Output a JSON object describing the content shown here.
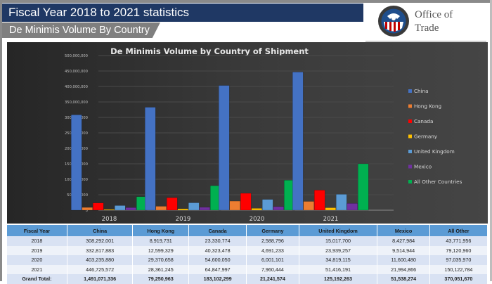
{
  "header": {
    "title": "Fiscal Year 2018 to 2021 statistics",
    "subtitle": "De Minimis Volume By Country",
    "logo_text_line1": "Office of",
    "logo_text_line2": "Trade"
  },
  "chart_data": {
    "type": "bar",
    "title": "De Minimis Volume by Country of Shipment",
    "xlabel": "",
    "ylabel": "",
    "categories": [
      "2018",
      "2019",
      "2020",
      "2021"
    ],
    "ylim": [
      0,
      500000000
    ],
    "yticks": [
      0,
      50000000,
      100000000,
      150000000,
      200000000,
      250000000,
      300000000,
      350000000,
      400000000,
      450000000,
      500000000
    ],
    "ytick_labels": [
      "0",
      "50,000,000",
      "100,000,000",
      "150,000,000",
      "200,000,000",
      "250,000,000",
      "300,000,000",
      "350,000,000",
      "400,000,000",
      "450,000,000",
      "500,000,000"
    ],
    "grid": true,
    "legend_position": "right",
    "series": [
      {
        "name": "China",
        "color": "#4472c4",
        "values": [
          308292001,
          332817883,
          403235880,
          446725572
        ]
      },
      {
        "name": "Hong Kong",
        "color": "#ed7d31",
        "values": [
          8919731,
          12599329,
          29370658,
          28361245
        ]
      },
      {
        "name": "Canada",
        "color": "#ff0000",
        "values": [
          23330774,
          40323478,
          54600050,
          64847997
        ]
      },
      {
        "name": "Germany",
        "color": "#ffc000",
        "values": [
          2588796,
          4691233,
          6001101,
          7960444
        ]
      },
      {
        "name": "United Kingdom",
        "color": "#5b9bd5",
        "values": [
          15017700,
          23939257,
          34819115,
          51416191
        ]
      },
      {
        "name": "Mexico",
        "color": "#7030a0",
        "values": [
          8427984,
          9514944,
          11600480,
          21994866
        ]
      },
      {
        "name": "All Other Countries",
        "color": "#00b050",
        "values": [
          43771956,
          79120960,
          97035970,
          150122784
        ]
      }
    ]
  },
  "table": {
    "headers": [
      "Fiscal Year",
      "China",
      "Hong Kong",
      "Canada",
      "Germany",
      "United Kingdom",
      "Mexico",
      "All Other"
    ],
    "rows": [
      [
        "2018",
        "308,292,001",
        "8,919,731",
        "23,330,774",
        "2,588,796",
        "15,017,700",
        "8,427,984",
        "43,771,956"
      ],
      [
        "2019",
        "332,817,883",
        "12,599,329",
        "40,323,478",
        "4,691,233",
        "23,939,257",
        "9,514,944",
        "79,120,960"
      ],
      [
        "2020",
        "403,235,880",
        "29,370,658",
        "54,600,050",
        "6,001,101",
        "34,819,115",
        "11,600,480",
        "97,035,970"
      ],
      [
        "2021",
        "446,725,572",
        "28,361,245",
        "64,847,997",
        "7,960,444",
        "51,416,191",
        "21,994,866",
        "150,122,784"
      ]
    ],
    "total": [
      "Grand Total:",
      "1,491,071,336",
      "79,250,963",
      "183,102,299",
      "21,241,574",
      "125,192,263",
      "51,538,274",
      "370,051,670"
    ]
  }
}
